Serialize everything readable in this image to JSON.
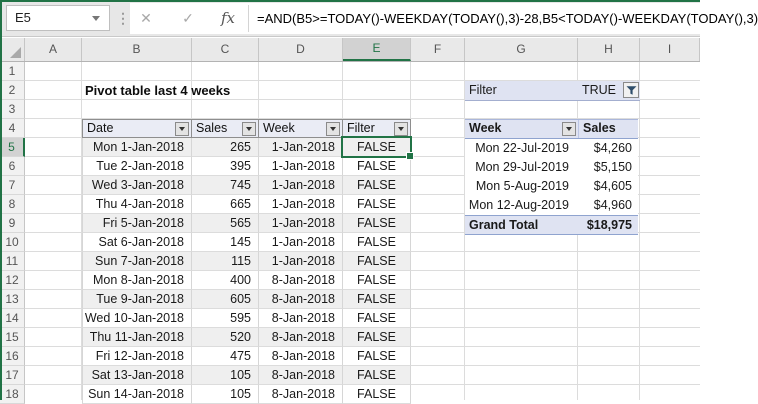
{
  "formula_bar": {
    "cell_reference": "E5",
    "formula": "=AND(B5>=TODAY()-WEEKDAY(TODAY(),3)-28,B5<TODAY()-WEEKDAY(TODAY(),3)",
    "cancel_glyph": "✕",
    "enter_glyph": "✓",
    "fx_label": "fx"
  },
  "grid": {
    "column_headers": [
      "A",
      "B",
      "C",
      "D",
      "E",
      "F",
      "G",
      "H",
      "I"
    ],
    "selected_column": "E",
    "row_headers": [
      "1",
      "2",
      "3",
      "4",
      "5",
      "6",
      "7",
      "8",
      "9",
      "10",
      "11",
      "12",
      "13",
      "14",
      "15",
      "16",
      "17",
      "18"
    ],
    "selected_row": "5"
  },
  "sheet": {
    "title": "Pivot table last 4 weeks",
    "filter_cell": {
      "label": "Filter",
      "value": "TRUE"
    },
    "selected_cell": {
      "reference": "E5",
      "value": "FALSE"
    }
  },
  "main_table": {
    "headers": [
      "Date",
      "Sales",
      "Week",
      "Filter"
    ],
    "rows": [
      [
        "Mon 1-Jan-2018",
        "265",
        "1-Jan-2018",
        "FALSE"
      ],
      [
        "Tue 2-Jan-2018",
        "395",
        "1-Jan-2018",
        "FALSE"
      ],
      [
        "Wed 3-Jan-2018",
        "745",
        "1-Jan-2018",
        "FALSE"
      ],
      [
        "Thu 4-Jan-2018",
        "665",
        "1-Jan-2018",
        "FALSE"
      ],
      [
        "Fri 5-Jan-2018",
        "565",
        "1-Jan-2018",
        "FALSE"
      ],
      [
        "Sat 6-Jan-2018",
        "145",
        "1-Jan-2018",
        "FALSE"
      ],
      [
        "Sun 7-Jan-2018",
        "115",
        "1-Jan-2018",
        "FALSE"
      ],
      [
        "Mon 8-Jan-2018",
        "400",
        "8-Jan-2018",
        "FALSE"
      ],
      [
        "Tue 9-Jan-2018",
        "605",
        "8-Jan-2018",
        "FALSE"
      ],
      [
        "Wed 10-Jan-2018",
        "595",
        "8-Jan-2018",
        "FALSE"
      ],
      [
        "Thu 11-Jan-2018",
        "520",
        "8-Jan-2018",
        "FALSE"
      ],
      [
        "Fri 12-Jan-2018",
        "475",
        "8-Jan-2018",
        "FALSE"
      ],
      [
        "Sat 13-Jan-2018",
        "105",
        "8-Jan-2018",
        "FALSE"
      ],
      [
        "Sun 14-Jan-2018",
        "105",
        "8-Jan-2018",
        "FALSE"
      ]
    ]
  },
  "pivot_table": {
    "headers": [
      "Week",
      "Sales"
    ],
    "rows": [
      [
        "Mon 22-Jul-2019",
        "$4,260"
      ],
      [
        "Mon 29-Jul-2019",
        "$5,150"
      ],
      [
        "Mon 5-Aug-2019",
        "$4,605"
      ],
      [
        "Mon 12-Aug-2019",
        "$4,960"
      ]
    ],
    "grand_total": {
      "label": "Grand Total",
      "value": "$18,975"
    }
  },
  "colors": {
    "accent_green": "#217346",
    "table_header_fill": "#eaecf5",
    "pivot_fill": "#dfe3f2",
    "band_fill": "#efefef"
  }
}
